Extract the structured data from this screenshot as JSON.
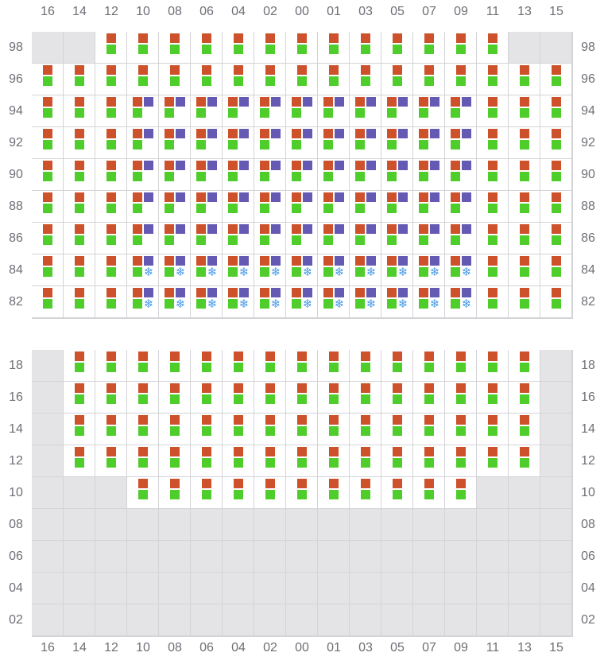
{
  "columns": [
    "16",
    "14",
    "12",
    "10",
    "08",
    "06",
    "04",
    "02",
    "00",
    "01",
    "03",
    "05",
    "07",
    "09",
    "11",
    "13",
    "15"
  ],
  "legend_codes": {
    ".": "unavailable",
    "B": "orange+green",
    "P": "orange+purple+green",
    "S": "orange+purple+green+snowflake"
  },
  "colors": {
    "orange": "#cd512b",
    "green": "#4fcd2b",
    "purple": "#6459b3",
    "snowflake": "#4a9be8",
    "unavailable": "#e4e4e7",
    "border": "#d4d4d8"
  },
  "top_grid": {
    "rows": [
      {
        "label": "98",
        "cells": "..BBBBBBBBBBBBB.."
      },
      {
        "label": "96",
        "cells": "BBBBBBBBBBBBBBBBB"
      },
      {
        "label": "94",
        "cells": "BBBPPPPPPPPPPPBBB"
      },
      {
        "label": "92",
        "cells": "BBBPPPPPPPPPPPBBB"
      },
      {
        "label": "90",
        "cells": "BBBPPPPPPPPPPPBBB"
      },
      {
        "label": "88",
        "cells": "BBBPPPPPPPPPPPBBB"
      },
      {
        "label": "86",
        "cells": "BBBPPPPPPPPPPPBBB"
      },
      {
        "label": "84",
        "cells": "BBBSSSSSSSSSSSBBB"
      },
      {
        "label": "82",
        "cells": "BBBSSSSSSSSSSSBBB"
      }
    ]
  },
  "bottom_grid": {
    "rows": [
      {
        "label": "18",
        "cells": ".BBBBBBBBBBBBBBB."
      },
      {
        "label": "16",
        "cells": ".BBBBBBBBBBBBBBB."
      },
      {
        "label": "14",
        "cells": ".BBBBBBBBBBBBBBB."
      },
      {
        "label": "12",
        "cells": ".BBBBBBBBBBBBBBB."
      },
      {
        "label": "10",
        "cells": "...BBBBBBBBBBB..."
      },
      {
        "label": "08",
        "cells": "................."
      },
      {
        "label": "06",
        "cells": "................."
      },
      {
        "label": "04",
        "cells": "................."
      },
      {
        "label": "02",
        "cells": "................."
      }
    ]
  },
  "snowflake_glyph": "❄"
}
